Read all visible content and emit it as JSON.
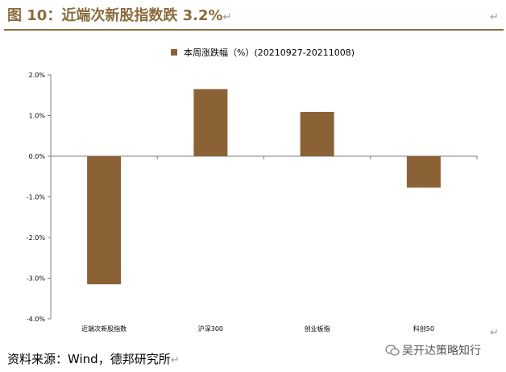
{
  "title": "图 10：近端次新股指数跌 3.2%",
  "return_mark": "↵",
  "source": "资料来源：Wind，德邦研究所",
  "watermark": "吴开达策略知行",
  "colors": {
    "bar": "#8B6235",
    "title": "#8B6B3D"
  },
  "chart_data": {
    "type": "bar",
    "categories": [
      "近端次新股指数",
      "沪深300",
      "创业板指",
      "科创50"
    ],
    "series": [
      {
        "name": "本周涨跌幅（%）(20210927-20211008)",
        "values": [
          -3.15,
          1.65,
          1.09,
          -0.77
        ]
      }
    ],
    "ylim": [
      -4.0,
      2.0
    ],
    "yticks": [
      "2.0%",
      "1.0%",
      "0.0%",
      "-1.0%",
      "-2.0%",
      "-3.0%",
      "-4.0%"
    ],
    "legend": "top-center"
  }
}
